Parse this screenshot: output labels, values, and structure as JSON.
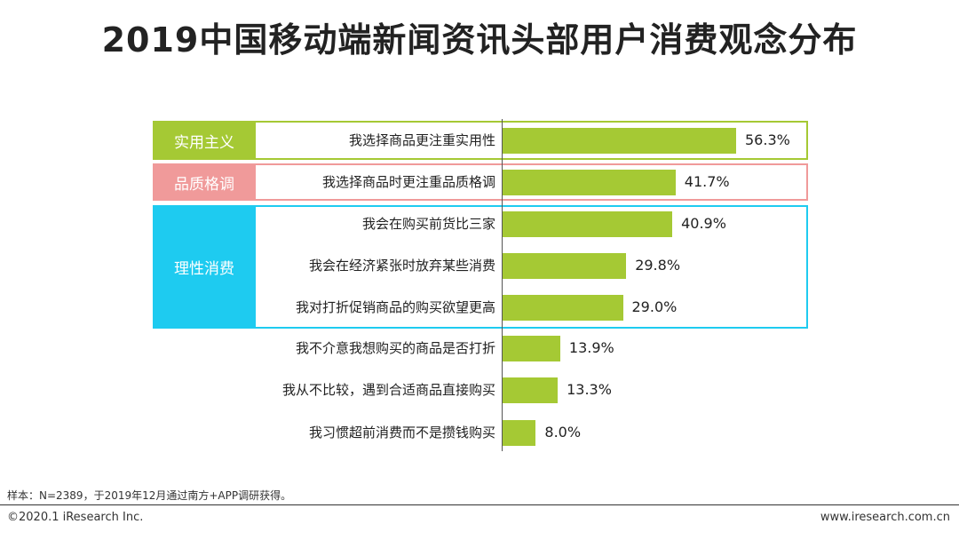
{
  "chart_data": {
    "type": "bar",
    "orientation": "horizontal",
    "title": "2019中国移动端新闻资讯头部用户消费观念分布",
    "xlim": [
      0,
      100
    ],
    "unit": "%",
    "bar_color": "#a5c934",
    "categories": [
      "我选择商品更注重实用性",
      "我选择商品时更注重品质格调",
      "我会在购买前货比三家",
      "我会在经济紧张时放弃某些消费",
      "我对打折促销商品的购买欲望更高",
      "我不介意我想购买的商品是否打折",
      "我从不比较，遇到合适商品直接购买",
      "我习惯超前消费而不是攒钱购买"
    ],
    "values": [
      56.3,
      41.7,
      40.9,
      29.8,
      29.0,
      13.9,
      13.3,
      8.0
    ],
    "value_labels": [
      "56.3%",
      "41.7%",
      "40.9%",
      "29.8%",
      "29.0%",
      "13.9%",
      "13.3%",
      "8.0%"
    ],
    "groups": [
      {
        "label": "实用主义",
        "color": "#a5c934",
        "items": [
          0
        ]
      },
      {
        "label": "品质格调",
        "color": "#f09a9a",
        "items": [
          1
        ]
      },
      {
        "label": "理性消费",
        "color": "#1ecbf0",
        "items": [
          2,
          3,
          4
        ]
      }
    ]
  },
  "footnote": "样本：N=2389，于2019年12月通过南方+APP调研获得。",
  "footer": {
    "copyright": "©2020.1 iResearch Inc.",
    "website": "www.iresearch.com.cn"
  }
}
